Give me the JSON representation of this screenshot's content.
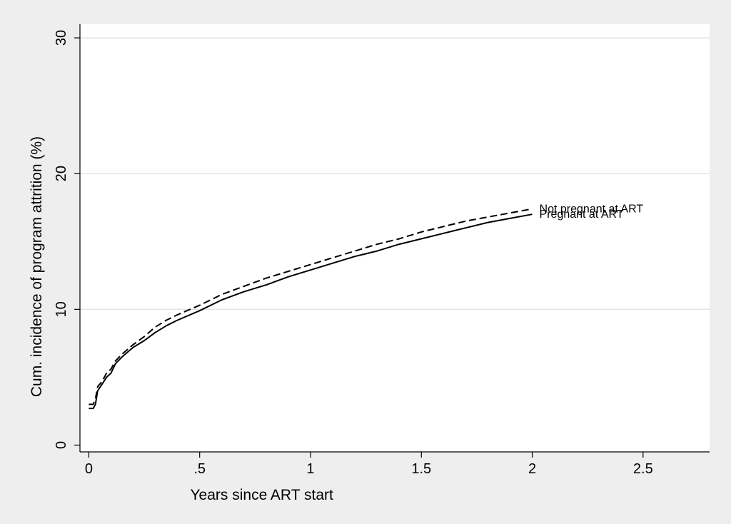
{
  "chart_data": {
    "type": "line",
    "title": "",
    "xlabel": "Years since ART start",
    "ylabel": "Cum. incidence of program attrition (%)",
    "xlim": [
      -0.04,
      2.8
    ],
    "ylim": [
      -0.5,
      31
    ],
    "x_ticks": [
      0,
      0.5,
      1,
      1.5,
      2,
      2.5
    ],
    "x_tick_labels": [
      "0",
      ".5",
      "1",
      "1.5",
      "2",
      "2.5"
    ],
    "y_ticks": [
      0,
      10,
      20,
      30
    ],
    "y_tick_labels": [
      "0",
      "10",
      "20",
      "30"
    ],
    "grid": "horizontal",
    "legend": "none",
    "colors": {
      "outer_background": "#eeeeee",
      "plot_background": "#ffffff",
      "grid": "#e3e3e3",
      "line": "#000000"
    },
    "series": [
      {
        "name": "Not pregnant at ART",
        "style": "dashed",
        "x": [
          0,
          0.02,
          0.03,
          0.04,
          0.06,
          0.08,
          0.1,
          0.12,
          0.15,
          0.2,
          0.25,
          0.3,
          0.35,
          0.4,
          0.5,
          0.6,
          0.7,
          0.8,
          0.9,
          1.0,
          1.1,
          1.2,
          1.3,
          1.4,
          1.5,
          1.6,
          1.7,
          1.8,
          1.9,
          2.0
        ],
        "y": [
          3.0,
          3.0,
          3.4,
          4.3,
          4.7,
          5.3,
          5.6,
          6.2,
          6.7,
          7.4,
          8.0,
          8.7,
          9.2,
          9.6,
          10.3,
          11.1,
          11.7,
          12.3,
          12.8,
          13.3,
          13.8,
          14.3,
          14.8,
          15.2,
          15.7,
          16.1,
          16.5,
          16.8,
          17.1,
          17.4
        ]
      },
      {
        "name": "Pregnant at ART",
        "style": "solid",
        "x": [
          0,
          0.02,
          0.03,
          0.04,
          0.06,
          0.08,
          0.1,
          0.12,
          0.15,
          0.2,
          0.25,
          0.3,
          0.35,
          0.4,
          0.5,
          0.6,
          0.7,
          0.8,
          0.9,
          1.0,
          1.1,
          1.2,
          1.3,
          1.4,
          1.5,
          1.6,
          1.7,
          1.8,
          1.9,
          2.0
        ],
        "y": [
          2.7,
          2.7,
          3.0,
          4.0,
          4.5,
          5.0,
          5.3,
          6.0,
          6.5,
          7.2,
          7.7,
          8.3,
          8.8,
          9.2,
          9.9,
          10.7,
          11.3,
          11.8,
          12.4,
          12.9,
          13.4,
          13.9,
          14.3,
          14.8,
          15.2,
          15.6,
          16.0,
          16.4,
          16.7,
          17.0
        ]
      }
    ]
  }
}
